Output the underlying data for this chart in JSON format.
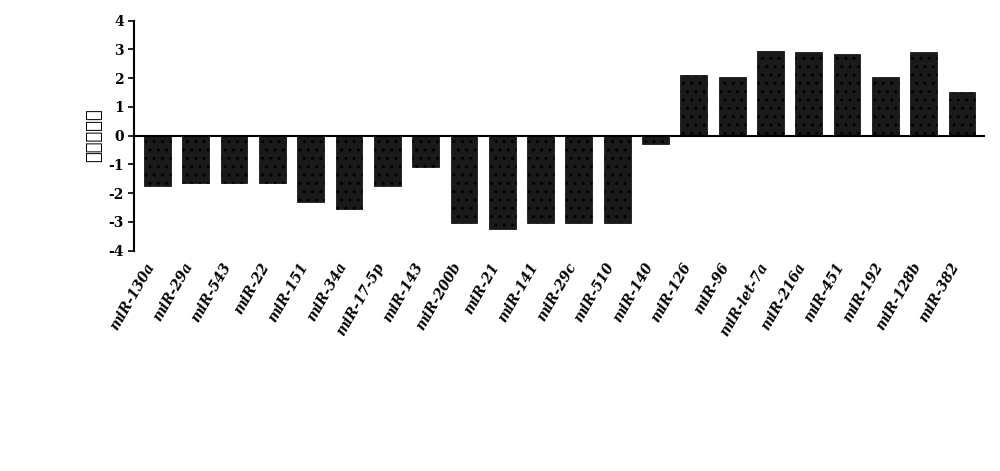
{
  "categories": [
    "miR-130a",
    "miR-29a",
    "miR-543",
    "miR-22",
    "miR-151",
    "miR-34a",
    "miR-17-5p",
    "miR-143",
    "miR-200b",
    "miR-21",
    "miR-141",
    "miR-29c",
    "miR-510",
    "miR-140",
    "miR-126",
    "miR-96",
    "miR-let-7a",
    "miR-216a",
    "miR-451",
    "miR-192",
    "miR-128b",
    "miR-382"
  ],
  "values": [
    -1.75,
    -1.65,
    -1.65,
    -1.65,
    -2.3,
    -2.55,
    -1.75,
    -1.1,
    -3.05,
    -3.25,
    -3.05,
    -3.05,
    -3.05,
    -0.3,
    2.1,
    2.05,
    2.95,
    2.9,
    2.85,
    2.05,
    2.9,
    1.5
  ],
  "bar_color": "#1a1a1a",
  "bar_hatch": "..",
  "ylabel": "倍数变化值",
  "ylim": [
    -4,
    4
  ],
  "yticks": [
    -4,
    -3,
    -2,
    -1,
    0,
    1,
    2,
    3,
    4
  ],
  "background_color": "#ffffff",
  "tick_fontsize": 10,
  "label_fontsize": 13,
  "xlabel_rotation": 60
}
